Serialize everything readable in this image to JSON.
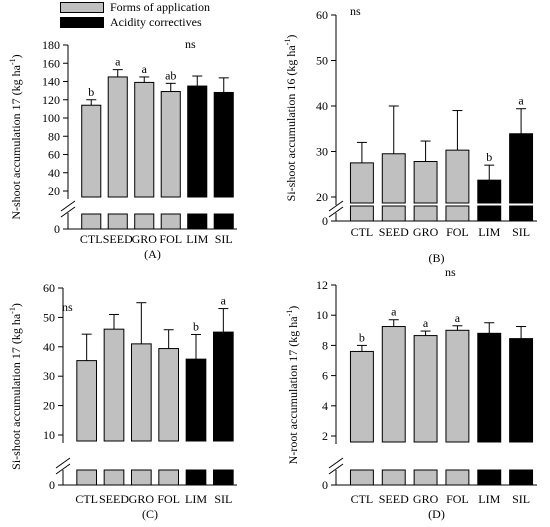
{
  "legend": {
    "items": [
      {
        "label": "Forms of application",
        "color": "#c0c0c0"
      },
      {
        "label": "Acidity correctives",
        "color": "#000000"
      }
    ]
  },
  "chart_data": [
    {
      "panel_label": "(A)",
      "type": "bar",
      "ylabel_main": "N-shoot accumulation 17 (kg ha",
      "ylabel_sup": "-1",
      "ylabel_end": ")",
      "categories": [
        "CTL",
        "SEED",
        "GRO",
        "FOL",
        "LIM",
        "SIL"
      ],
      "values": [
        114,
        145,
        139,
        129,
        135,
        128
      ],
      "errors": [
        6,
        8,
        6,
        9,
        11,
        16
      ],
      "letters": [
        "b",
        "a",
        "a",
        "ab",
        "",
        ""
      ],
      "group_colors": [
        "#c0c0c0",
        "#c0c0c0",
        "#c0c0c0",
        "#c0c0c0",
        "#000000",
        "#000000"
      ],
      "annotation": "ns",
      "yticks": [
        20,
        40,
        60,
        80,
        100,
        120,
        140,
        160,
        180
      ],
      "ylim": [
        0,
        180
      ],
      "zero_label": "0"
    },
    {
      "panel_label": "(B)",
      "type": "bar",
      "ylabel_main": "Si-shoot accumulation 16 (kg ha",
      "ylabel_sup": "-1",
      "ylabel_end": ")",
      "categories": [
        "CTL",
        "SEED",
        "GRO",
        "FOL",
        "LIM",
        "SIL"
      ],
      "values": [
        27.5,
        29.5,
        27.8,
        30.3,
        23.7,
        33.9
      ],
      "errors": [
        4.5,
        10.5,
        4.5,
        8.7,
        3.3,
        5.5
      ],
      "letters": [
        "",
        "",
        "",
        "",
        "b",
        "a"
      ],
      "group_colors": [
        "#c0c0c0",
        "#c0c0c0",
        "#c0c0c0",
        "#c0c0c0",
        "#000000",
        "#000000"
      ],
      "annotation": "ns",
      "yticks": [
        20,
        30,
        40,
        50,
        60
      ],
      "ylim": [
        0,
        60
      ],
      "zero_label": "0"
    },
    {
      "panel_label": "(C)",
      "type": "bar",
      "ylabel_main": "Si-shoot accumulation 17 (kg ha",
      "ylabel_sup": "-1",
      "ylabel_end": ")",
      "categories": [
        "CTL",
        "SEED",
        "GRO",
        "FOL",
        "LIM",
        "SIL"
      ],
      "values": [
        35.3,
        46,
        41,
        39.4,
        35.8,
        45
      ],
      "errors": [
        9,
        5,
        14,
        6.4,
        8.4,
        8
      ],
      "letters": [
        "",
        "",
        "",
        "",
        "b",
        "a"
      ],
      "group_colors": [
        "#c0c0c0",
        "#c0c0c0",
        "#c0c0c0",
        "#c0c0c0",
        "#000000",
        "#000000"
      ],
      "annotation": "ns",
      "yticks": [
        10,
        20,
        30,
        40,
        50,
        60
      ],
      "ylim": [
        0,
        60
      ],
      "zero_label": "0"
    },
    {
      "panel_label": "(D)",
      "type": "bar",
      "ylabel_main": "N-root accumulation 17 (kg ha",
      "ylabel_sup": "-1",
      "ylabel_end": ")",
      "categories": [
        "CTL",
        "SEED",
        "GRO",
        "FOL",
        "LIM",
        "SIL"
      ],
      "values": [
        7.6,
        9.25,
        8.65,
        9.0,
        8.8,
        8.45
      ],
      "errors": [
        0.4,
        0.45,
        0.3,
        0.3,
        0.7,
        0.8
      ],
      "letters": [
        "b",
        "a",
        "a",
        "a",
        "",
        ""
      ],
      "group_colors": [
        "#c0c0c0",
        "#c0c0c0",
        "#c0c0c0",
        "#c0c0c0",
        "#000000",
        "#000000"
      ],
      "annotation": "ns",
      "yticks": [
        2,
        4,
        6,
        8,
        10,
        12
      ],
      "ylim": [
        0,
        12
      ],
      "zero_label": "0"
    }
  ]
}
